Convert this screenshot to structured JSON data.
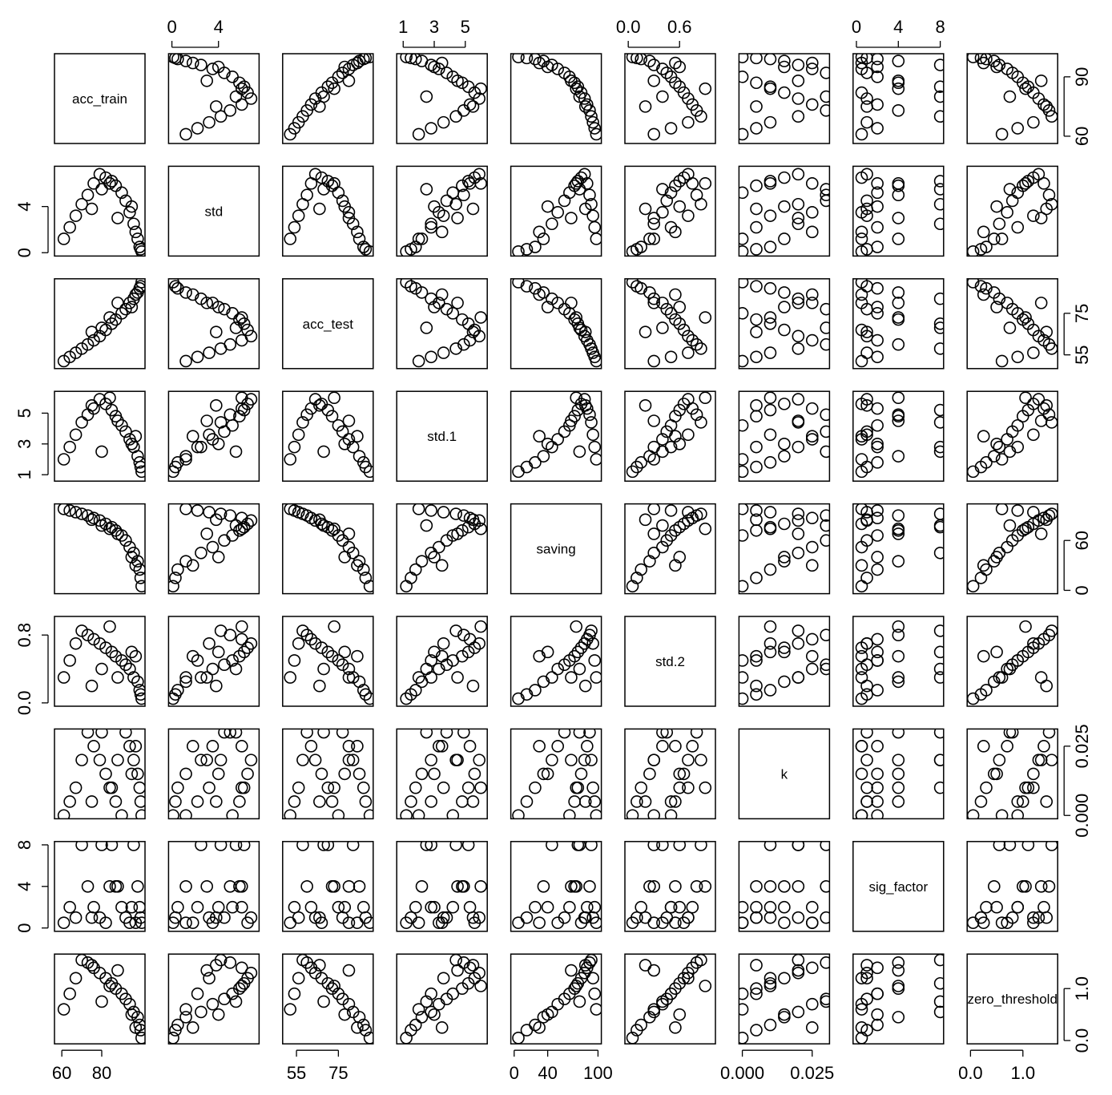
{
  "chart_data": {
    "type": "scatter-matrix",
    "color": "#000000",
    "variables": [
      {
        "name": "acc_train",
        "lim": [
          58,
          100
        ],
        "xticks": [
          60,
          80
        ],
        "yticks": [
          60,
          90
        ],
        "values": [
          100,
          99.5,
          99,
          98,
          96,
          94,
          92,
          90,
          87,
          85,
          82,
          79,
          76,
          73,
          70,
          67,
          64,
          61,
          95,
          88,
          80,
          75,
          97,
          84
        ]
      },
      {
        "name": "std",
        "lim": [
          0,
          7.2
        ],
        "xticks": [
          0,
          4
        ],
        "yticks": [
          0,
          4
        ],
        "values": [
          0.1,
          0.3,
          0.5,
          1.2,
          2.5,
          3.5,
          4.5,
          5.2,
          5.8,
          6.2,
          6.5,
          6.8,
          6.0,
          5.0,
          4.2,
          3.2,
          2.2,
          1.2,
          4.0,
          3.0,
          5.5,
          3.8,
          1.8,
          6.0
        ]
      },
      {
        "name": "acc_test",
        "lim": [
          50,
          90
        ],
        "xticks": [
          55,
          75
        ],
        "yticks": [
          55,
          75
        ],
        "values": [
          90,
          88,
          87,
          85,
          82,
          80,
          77,
          75,
          72,
          70,
          67,
          64,
          62,
          60,
          58,
          56,
          54,
          52,
          78,
          80,
          68,
          66,
          84,
          73
        ]
      },
      {
        "name": "std.1",
        "lim": [
          0.8,
          6.2
        ],
        "xticks": [
          1,
          3,
          5
        ],
        "yticks": [
          1,
          3,
          5
        ],
        "values": [
          1.2,
          1.5,
          1.8,
          2.2,
          2.8,
          3.3,
          3.8,
          4.2,
          4.8,
          5.2,
          5.6,
          5.9,
          5.3,
          4.9,
          4.4,
          3.6,
          2.8,
          2.0,
          3.0,
          4.5,
          2.5,
          5.5,
          3.5,
          6.0
        ]
      },
      {
        "name": "saving",
        "lim": [
          0,
          100
        ],
        "xticks": [
          0,
          40,
          100
        ],
        "yticks": [
          0,
          60
        ],
        "values": [
          5,
          15,
          25,
          35,
          45,
          52,
          60,
          66,
          72,
          76,
          80,
          84,
          87,
          90,
          92,
          94,
          96,
          98,
          40,
          68,
          78,
          85,
          30,
          74
        ]
      },
      {
        "name": "std.2",
        "lim": [
          0,
          0.98
        ],
        "xticks": [
          {
            "value": 0,
            "label": "0.0"
          },
          0.6
        ],
        "yticks": [
          {
            "value": 0,
            "label": "0.0"
          },
          0.8
        ],
        "values": [
          0.05,
          0.1,
          0.15,
          0.25,
          0.3,
          0.4,
          0.45,
          0.5,
          0.55,
          0.6,
          0.65,
          0.7,
          0.75,
          0.8,
          0.85,
          0.7,
          0.5,
          0.3,
          0.6,
          0.3,
          0.4,
          0.2,
          0.55,
          0.9
        ]
      },
      {
        "name": "k",
        "lim": [
          0,
          0.03
        ],
        "xticks": [
          {
            "value": 0,
            "label": "0.000"
          },
          0.025
        ],
        "yticks": [
          {
            "value": 0,
            "label": "0.000"
          },
          0.025
        ],
        "values": [
          0,
          0.005,
          0.01,
          0.015,
          0.02,
          0.025,
          0.03,
          0,
          0.005,
          0.01,
          0.015,
          0.02,
          0.025,
          0.03,
          0.02,
          0.01,
          0.005,
          0,
          0.015,
          0.02,
          0.03,
          0.005,
          0.025,
          0.01
        ]
      },
      {
        "name": "sig_factor",
        "lim": [
          0,
          8
        ],
        "xticks": [
          0,
          4,
          8
        ],
        "yticks": [
          0,
          4,
          8
        ],
        "values": [
          0.5,
          1,
          2,
          4,
          8,
          0.5,
          1,
          2,
          4,
          8,
          0.5,
          1,
          2,
          4,
          8,
          1,
          2,
          0.5,
          2,
          4,
          8,
          1,
          0.5,
          4
        ]
      },
      {
        "name": "zero_threshold",
        "lim": [
          0,
          1.6
        ],
        "xticks": [
          {
            "value": 0,
            "label": "0.0"
          },
          {
            "value": 1,
            "label": "1.0"
          }
        ],
        "yticks": [
          {
            "value": 0,
            "label": "0.0"
          },
          {
            "value": 1,
            "label": "1.0"
          }
        ],
        "values": [
          0.05,
          0.2,
          0.3,
          0.45,
          0.55,
          0.7,
          0.8,
          0.9,
          1.0,
          1.1,
          1.2,
          1.3,
          1.4,
          1.5,
          1.55,
          1.2,
          0.9,
          0.6,
          0.5,
          1.35,
          0.75,
          1.45,
          0.25,
          1.05
        ]
      }
    ]
  }
}
